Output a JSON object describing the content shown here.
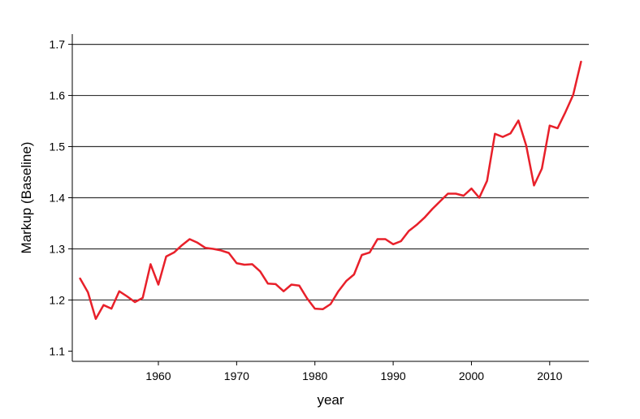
{
  "chart_data": {
    "type": "line",
    "xlabel": "year",
    "ylabel": "Markup (Baseline)",
    "xlim": [
      1949,
      2015
    ],
    "ylim": [
      1.08,
      1.72
    ],
    "xticks": [
      1960,
      1970,
      1980,
      1990,
      2000,
      2010
    ],
    "yticks": [
      1.1,
      1.2,
      1.3,
      1.4,
      1.5,
      1.6,
      1.7
    ],
    "grid": true,
    "series": [
      {
        "color": "#e8202a",
        "x": [
          1950,
          1951,
          1952,
          1953,
          1954,
          1955,
          1956,
          1957,
          1958,
          1959,
          1960,
          1961,
          1962,
          1963,
          1964,
          1965,
          1966,
          1967,
          1968,
          1969,
          1970,
          1971,
          1972,
          1973,
          1974,
          1975,
          1976,
          1977,
          1978,
          1979,
          1980,
          1981,
          1982,
          1983,
          1984,
          1985,
          1986,
          1987,
          1988,
          1989,
          1990,
          1991,
          1992,
          1993,
          1994,
          1995,
          1996,
          1997,
          1998,
          1999,
          2000,
          2001,
          2002,
          2003,
          2004,
          2005,
          2006,
          2007,
          2008,
          2009,
          2010,
          2011,
          2012,
          2013,
          2014
        ],
        "values": [
          1.242,
          1.215,
          1.163,
          1.19,
          1.183,
          1.217,
          1.207,
          1.196,
          1.204,
          1.27,
          1.23,
          1.285,
          1.293,
          1.307,
          1.319,
          1.312,
          1.302,
          1.3,
          1.297,
          1.292,
          1.272,
          1.269,
          1.27,
          1.256,
          1.232,
          1.231,
          1.217,
          1.23,
          1.228,
          1.203,
          1.183,
          1.182,
          1.192,
          1.217,
          1.237,
          1.25,
          1.288,
          1.293,
          1.319,
          1.319,
          1.309,
          1.315,
          1.335,
          1.347,
          1.361,
          1.378,
          1.393,
          1.408,
          1.408,
          1.404,
          1.418,
          1.4,
          1.433,
          1.525,
          1.519,
          1.526,
          1.551,
          1.502,
          1.424,
          1.457,
          1.541,
          1.536,
          1.567,
          1.601,
          1.666
        ]
      }
    ]
  }
}
